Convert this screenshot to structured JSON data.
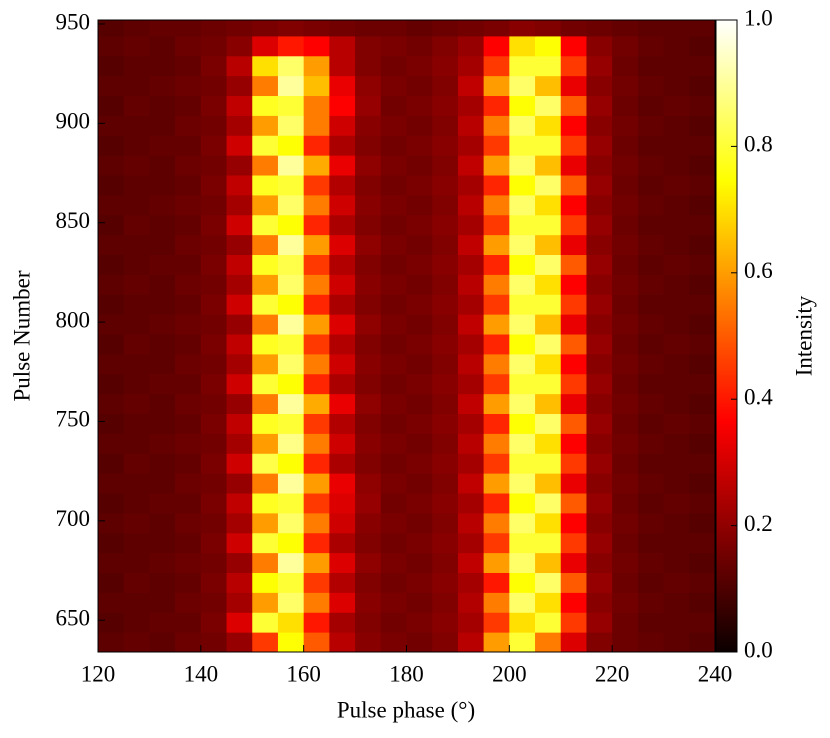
{
  "chart_data": {
    "type": "heatmap",
    "xlabel": "Pulse phase (°)",
    "ylabel": "Pulse Number",
    "colorbar_label": "Intensity",
    "colormap": "hot",
    "xlim": [
      120,
      240
    ],
    "ylim": [
      634,
      952
    ],
    "xticks": [
      120,
      140,
      160,
      180,
      200,
      220,
      240
    ],
    "yticks": [
      650,
      700,
      750,
      800,
      850,
      900,
      950
    ],
    "clim": [
      0,
      1
    ],
    "cticks": [
      {
        "value": 0,
        "label": "0.0"
      },
      0.2,
      0.4,
      0.6,
      0.8,
      {
        "value": 1,
        "label": "1.0"
      }
    ],
    "xbins": [
      120,
      125,
      130,
      135,
      140,
      145,
      150,
      155,
      160,
      165,
      170,
      175,
      180,
      185,
      190,
      195,
      200,
      205,
      210,
      215,
      220,
      225,
      230,
      235,
      240
    ],
    "ybins": [
      634,
      644,
      654,
      664,
      674,
      684,
      694,
      704,
      714,
      724,
      734,
      744,
      754,
      764,
      774,
      784,
      794,
      804,
      814,
      824,
      834,
      844,
      854,
      864,
      874,
      884,
      894,
      904,
      914,
      924,
      934,
      944,
      952
    ],
    "z": [
      [
        0.12,
        0.13,
        0.12,
        0.14,
        0.15,
        0.2,
        0.45,
        0.75,
        0.5,
        0.25,
        0.18,
        0.16,
        0.15,
        0.17,
        0.25,
        0.6,
        0.8,
        0.55,
        0.3,
        0.17,
        0.14,
        0.13,
        0.12,
        0.11
      ],
      [
        0.11,
        0.12,
        0.13,
        0.13,
        0.16,
        0.3,
        0.8,
        0.7,
        0.4,
        0.22,
        0.17,
        0.15,
        0.16,
        0.18,
        0.22,
        0.45,
        0.7,
        0.8,
        0.45,
        0.2,
        0.14,
        0.12,
        0.12,
        0.12
      ],
      [
        0.12,
        0.12,
        0.12,
        0.14,
        0.15,
        0.22,
        0.6,
        0.85,
        0.55,
        0.3,
        0.18,
        0.16,
        0.15,
        0.17,
        0.24,
        0.55,
        0.85,
        0.7,
        0.35,
        0.18,
        0.15,
        0.13,
        0.12,
        0.11
      ],
      [
        0.11,
        0.13,
        0.12,
        0.13,
        0.16,
        0.25,
        0.75,
        0.8,
        0.45,
        0.24,
        0.17,
        0.15,
        0.16,
        0.18,
        0.22,
        0.4,
        0.75,
        0.85,
        0.5,
        0.2,
        0.14,
        0.12,
        0.13,
        0.12
      ],
      [
        0.12,
        0.12,
        0.13,
        0.14,
        0.15,
        0.2,
        0.55,
        0.9,
        0.6,
        0.3,
        0.19,
        0.16,
        0.15,
        0.17,
        0.26,
        0.6,
        0.85,
        0.65,
        0.32,
        0.18,
        0.15,
        0.13,
        0.12,
        0.11
      ],
      [
        0.11,
        0.12,
        0.12,
        0.13,
        0.16,
        0.28,
        0.8,
        0.75,
        0.42,
        0.23,
        0.17,
        0.15,
        0.16,
        0.18,
        0.22,
        0.45,
        0.8,
        0.8,
        0.45,
        0.2,
        0.14,
        0.12,
        0.12,
        0.12
      ],
      [
        0.12,
        0.13,
        0.12,
        0.14,
        0.15,
        0.22,
        0.6,
        0.85,
        0.55,
        0.28,
        0.18,
        0.16,
        0.15,
        0.17,
        0.25,
        0.55,
        0.85,
        0.7,
        0.35,
        0.18,
        0.15,
        0.13,
        0.12,
        0.11
      ],
      [
        0.11,
        0.12,
        0.13,
        0.13,
        0.16,
        0.26,
        0.78,
        0.8,
        0.45,
        0.3,
        0.2,
        0.15,
        0.16,
        0.18,
        0.22,
        0.42,
        0.75,
        0.85,
        0.5,
        0.2,
        0.14,
        0.12,
        0.13,
        0.12
      ],
      [
        0.12,
        0.12,
        0.12,
        0.14,
        0.15,
        0.2,
        0.55,
        0.9,
        0.6,
        0.32,
        0.19,
        0.16,
        0.15,
        0.17,
        0.26,
        0.6,
        0.85,
        0.65,
        0.32,
        0.18,
        0.15,
        0.13,
        0.12,
        0.11
      ],
      [
        0.11,
        0.13,
        0.12,
        0.13,
        0.16,
        0.28,
        0.82,
        0.75,
        0.42,
        0.23,
        0.17,
        0.15,
        0.16,
        0.18,
        0.22,
        0.45,
        0.8,
        0.8,
        0.45,
        0.2,
        0.14,
        0.12,
        0.12,
        0.12
      ],
      [
        0.12,
        0.12,
        0.13,
        0.14,
        0.15,
        0.22,
        0.6,
        0.88,
        0.55,
        0.28,
        0.18,
        0.16,
        0.15,
        0.17,
        0.25,
        0.55,
        0.85,
        0.7,
        0.35,
        0.18,
        0.15,
        0.13,
        0.12,
        0.11
      ],
      [
        0.11,
        0.12,
        0.12,
        0.13,
        0.16,
        0.26,
        0.78,
        0.8,
        0.45,
        0.24,
        0.17,
        0.15,
        0.16,
        0.18,
        0.22,
        0.42,
        0.75,
        0.85,
        0.5,
        0.2,
        0.14,
        0.12,
        0.13,
        0.12
      ],
      [
        0.12,
        0.13,
        0.12,
        0.14,
        0.15,
        0.2,
        0.55,
        0.9,
        0.62,
        0.32,
        0.19,
        0.16,
        0.15,
        0.17,
        0.26,
        0.6,
        0.85,
        0.65,
        0.32,
        0.18,
        0.15,
        0.13,
        0.12,
        0.11
      ],
      [
        0.11,
        0.12,
        0.13,
        0.13,
        0.16,
        0.28,
        0.8,
        0.75,
        0.42,
        0.23,
        0.17,
        0.15,
        0.16,
        0.18,
        0.22,
        0.45,
        0.8,
        0.8,
        0.45,
        0.2,
        0.14,
        0.12,
        0.12,
        0.12
      ],
      [
        0.12,
        0.12,
        0.12,
        0.14,
        0.15,
        0.22,
        0.6,
        0.85,
        0.55,
        0.28,
        0.18,
        0.16,
        0.15,
        0.17,
        0.25,
        0.55,
        0.85,
        0.7,
        0.35,
        0.18,
        0.15,
        0.13,
        0.12,
        0.11
      ],
      [
        0.11,
        0.13,
        0.12,
        0.13,
        0.16,
        0.26,
        0.78,
        0.8,
        0.45,
        0.24,
        0.17,
        0.15,
        0.16,
        0.18,
        0.22,
        0.42,
        0.75,
        0.85,
        0.5,
        0.2,
        0.14,
        0.12,
        0.13,
        0.12
      ],
      [
        0.12,
        0.12,
        0.13,
        0.14,
        0.15,
        0.2,
        0.55,
        0.9,
        0.6,
        0.3,
        0.19,
        0.16,
        0.15,
        0.17,
        0.26,
        0.6,
        0.85,
        0.65,
        0.32,
        0.18,
        0.15,
        0.13,
        0.12,
        0.11
      ],
      [
        0.11,
        0.12,
        0.12,
        0.13,
        0.16,
        0.28,
        0.8,
        0.75,
        0.42,
        0.23,
        0.17,
        0.15,
        0.16,
        0.18,
        0.22,
        0.45,
        0.8,
        0.8,
        0.45,
        0.2,
        0.14,
        0.12,
        0.12,
        0.12
      ],
      [
        0.12,
        0.13,
        0.12,
        0.14,
        0.15,
        0.22,
        0.6,
        0.85,
        0.55,
        0.28,
        0.18,
        0.16,
        0.15,
        0.17,
        0.25,
        0.55,
        0.85,
        0.7,
        0.35,
        0.18,
        0.15,
        0.13,
        0.12,
        0.11
      ],
      [
        0.11,
        0.12,
        0.13,
        0.13,
        0.16,
        0.26,
        0.78,
        0.82,
        0.45,
        0.24,
        0.17,
        0.15,
        0.16,
        0.18,
        0.22,
        0.42,
        0.75,
        0.85,
        0.5,
        0.2,
        0.14,
        0.12,
        0.13,
        0.12
      ],
      [
        0.12,
        0.12,
        0.12,
        0.14,
        0.15,
        0.2,
        0.55,
        0.9,
        0.6,
        0.3,
        0.19,
        0.16,
        0.15,
        0.17,
        0.26,
        0.6,
        0.85,
        0.65,
        0.32,
        0.18,
        0.15,
        0.13,
        0.12,
        0.11
      ],
      [
        0.11,
        0.13,
        0.12,
        0.13,
        0.16,
        0.28,
        0.8,
        0.75,
        0.42,
        0.23,
        0.17,
        0.15,
        0.16,
        0.18,
        0.22,
        0.45,
        0.8,
        0.8,
        0.45,
        0.2,
        0.14,
        0.12,
        0.12,
        0.12
      ],
      [
        0.12,
        0.12,
        0.13,
        0.14,
        0.15,
        0.22,
        0.6,
        0.85,
        0.55,
        0.28,
        0.18,
        0.16,
        0.15,
        0.17,
        0.25,
        0.55,
        0.85,
        0.7,
        0.35,
        0.18,
        0.15,
        0.13,
        0.12,
        0.11
      ],
      [
        0.11,
        0.12,
        0.12,
        0.13,
        0.16,
        0.26,
        0.78,
        0.8,
        0.45,
        0.24,
        0.17,
        0.15,
        0.16,
        0.18,
        0.22,
        0.42,
        0.75,
        0.85,
        0.5,
        0.2,
        0.14,
        0.12,
        0.13,
        0.12
      ],
      [
        0.12,
        0.13,
        0.12,
        0.14,
        0.15,
        0.2,
        0.55,
        0.9,
        0.62,
        0.32,
        0.19,
        0.16,
        0.15,
        0.17,
        0.26,
        0.6,
        0.85,
        0.65,
        0.32,
        0.18,
        0.15,
        0.13,
        0.12,
        0.11
      ],
      [
        0.11,
        0.12,
        0.13,
        0.13,
        0.16,
        0.28,
        0.8,
        0.75,
        0.42,
        0.23,
        0.17,
        0.15,
        0.16,
        0.18,
        0.22,
        0.45,
        0.8,
        0.8,
        0.45,
        0.2,
        0.14,
        0.12,
        0.12,
        0.12
      ],
      [
        0.12,
        0.12,
        0.12,
        0.14,
        0.15,
        0.22,
        0.6,
        0.85,
        0.55,
        0.28,
        0.18,
        0.16,
        0.15,
        0.17,
        0.25,
        0.55,
        0.85,
        0.7,
        0.35,
        0.18,
        0.15,
        0.13,
        0.12,
        0.11
      ],
      [
        0.11,
        0.13,
        0.12,
        0.13,
        0.16,
        0.26,
        0.78,
        0.8,
        0.55,
        0.35,
        0.2,
        0.15,
        0.16,
        0.18,
        0.22,
        0.42,
        0.75,
        0.85,
        0.5,
        0.2,
        0.14,
        0.12,
        0.13,
        0.12
      ],
      [
        0.12,
        0.12,
        0.13,
        0.14,
        0.15,
        0.2,
        0.55,
        0.9,
        0.65,
        0.32,
        0.19,
        0.16,
        0.15,
        0.17,
        0.26,
        0.6,
        0.85,
        0.65,
        0.32,
        0.18,
        0.15,
        0.13,
        0.12,
        0.11
      ],
      [
        0.11,
        0.12,
        0.12,
        0.13,
        0.16,
        0.25,
        0.7,
        0.85,
        0.6,
        0.25,
        0.17,
        0.15,
        0.16,
        0.18,
        0.22,
        0.45,
        0.8,
        0.8,
        0.45,
        0.2,
        0.14,
        0.12,
        0.12,
        0.12
      ],
      [
        0.12,
        0.13,
        0.12,
        0.14,
        0.15,
        0.18,
        0.3,
        0.4,
        0.35,
        0.25,
        0.17,
        0.16,
        0.15,
        0.17,
        0.2,
        0.35,
        0.7,
        0.75,
        0.35,
        0.18,
        0.15,
        0.13,
        0.12,
        0.11
      ],
      [
        0.11,
        0.12,
        0.13,
        0.13,
        0.14,
        0.15,
        0.16,
        0.17,
        0.16,
        0.15,
        0.14,
        0.14,
        0.13,
        0.14,
        0.15,
        0.16,
        0.18,
        0.17,
        0.15,
        0.14,
        0.13,
        0.12,
        0.12,
        0.12
      ]
    ]
  }
}
